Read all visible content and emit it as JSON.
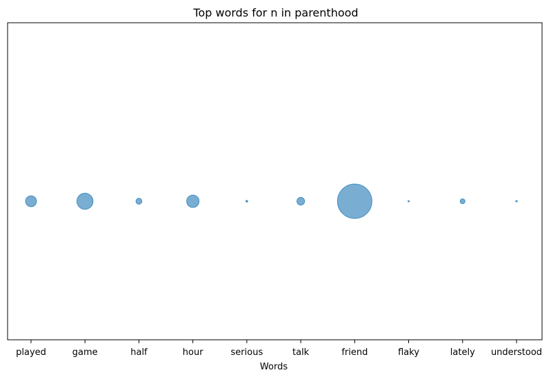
{
  "chart_data": {
    "type": "scatter",
    "title": "Top words for n in parenthood",
    "xlabel": "Words",
    "ylabel": "",
    "categories": [
      "played",
      "game",
      "half",
      "hour",
      "serious",
      "talk",
      "friend",
      "flaky",
      "lately",
      "understood"
    ],
    "sizes": [
      0.1,
      0.22,
      0.03,
      0.13,
      0.003,
      0.05,
      1.0,
      0.001,
      0.02,
      0.002
    ],
    "y_ticks_shown": false,
    "grid": false,
    "legend": "none",
    "colors": {
      "marker": "#1f77b4",
      "marker_alpha": 0.6
    }
  }
}
